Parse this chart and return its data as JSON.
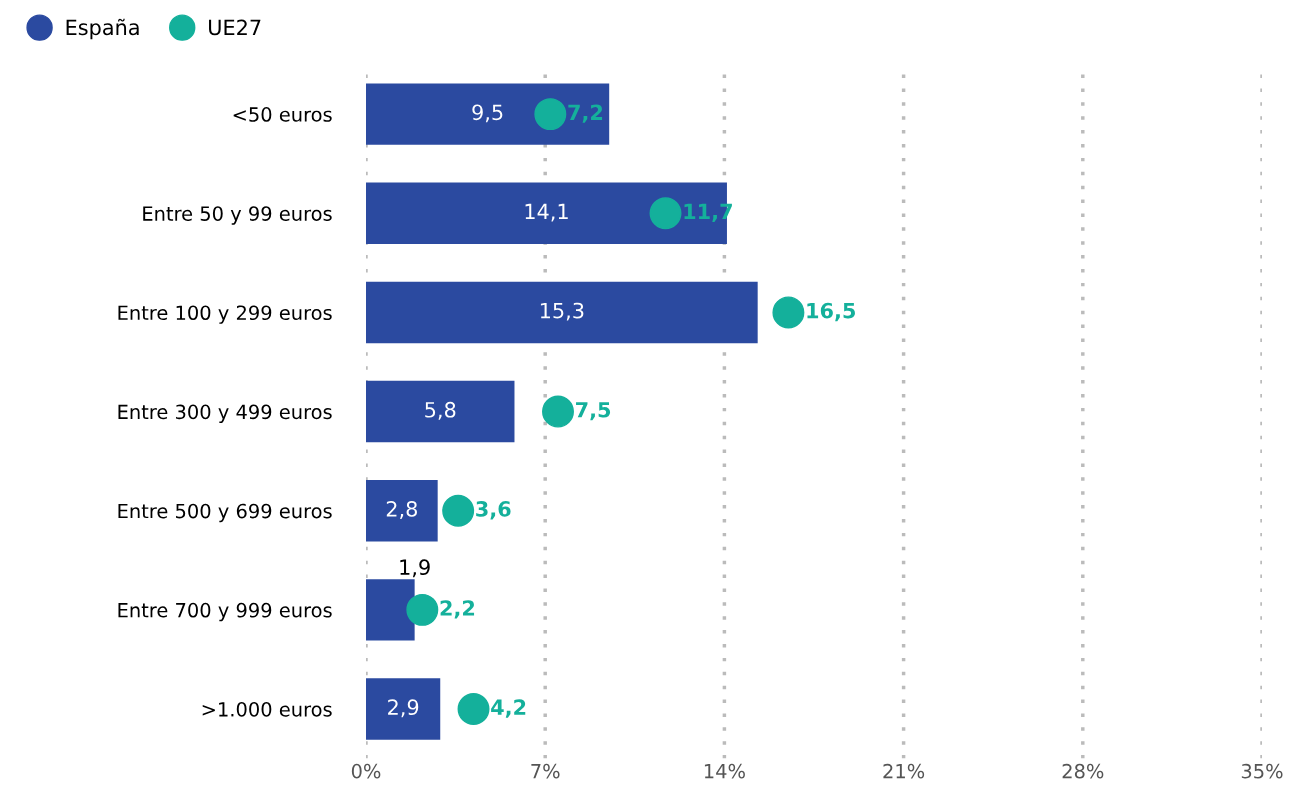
{
  "chart_data": {
    "type": "bar",
    "orientation": "horizontal",
    "categories": [
      "<50 euros",
      "Entre 50 y 99 euros",
      "Entre 100 y 299 euros",
      "Entre 300 y 499 euros",
      "Entre 500 y 699 euros",
      "Entre 700 y 999 euros",
      ">1.000 euros"
    ],
    "series": [
      {
        "name": "España",
        "color": "#2b4aa0",
        "values": [
          9.5,
          14.1,
          15.3,
          5.8,
          2.8,
          1.9,
          2.9
        ],
        "value_labels": [
          "9,5",
          "14,1",
          "15,3",
          "5,8",
          "2,8",
          "1,9",
          "2,9"
        ]
      },
      {
        "name": "UE27",
        "type": "scatter",
        "color": "#14b09b",
        "marker": "circle",
        "values": [
          7.2,
          11.7,
          16.5,
          7.5,
          3.6,
          2.2,
          4.2
        ],
        "value_labels": [
          "7,2",
          "11,7",
          "16,5",
          "7,5",
          "3,6",
          "2,2",
          "4,2"
        ]
      }
    ],
    "xlim": [
      0,
      35
    ],
    "xticks": [
      {
        "value": 0,
        "label": "0%"
      },
      {
        "value": 7,
        "label": "7%"
      },
      {
        "value": 14,
        "label": "14%"
      },
      {
        "value": 21,
        "label": "21%"
      },
      {
        "value": 28,
        "label": "28%"
      },
      {
        "value": 35,
        "label": "35%"
      }
    ],
    "grid": "x",
    "legend": "top left"
  }
}
